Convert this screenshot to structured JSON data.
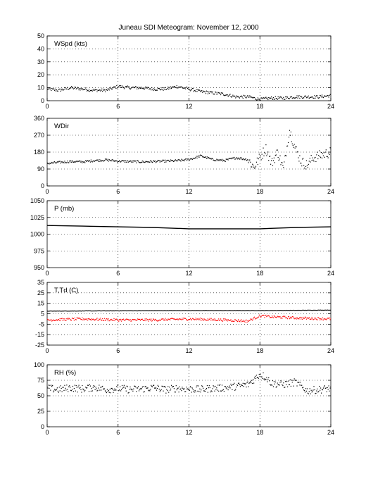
{
  "title": "Juneau SDI Meteogram:  November 12, 2000",
  "chart_data": [
    {
      "type": "scatter",
      "label": "WSpd (kts)",
      "xlim": [
        0,
        24
      ],
      "xticks": [
        0,
        6,
        12,
        18,
        24
      ],
      "ylim": [
        0,
        50
      ],
      "yticks": [
        0,
        10,
        20,
        30,
        40,
        50
      ],
      "grid": "dotted",
      "color": "#000000",
      "x": [
        0,
        1,
        2,
        3,
        4,
        5,
        6,
        7,
        8,
        9,
        10,
        11,
        12,
        13,
        14,
        15,
        16,
        17,
        18,
        19,
        20,
        21,
        22,
        23,
        24
      ],
      "y": [
        9,
        8,
        10,
        9,
        8,
        8,
        11,
        10,
        10,
        9,
        9,
        11,
        9,
        7,
        6,
        5,
        3,
        3,
        1,
        2,
        2,
        3,
        3,
        3,
        4
      ]
    },
    {
      "type": "scatter",
      "label": "WDir",
      "xlim": [
        0,
        24
      ],
      "xticks": [
        0,
        6,
        12,
        18,
        24
      ],
      "ylim": [
        0,
        360
      ],
      "yticks": [
        0,
        90,
        180,
        270,
        360
      ],
      "grid": "dotted",
      "color": "#000000",
      "x": [
        0,
        1,
        2,
        3,
        4,
        5,
        6,
        7,
        8,
        9,
        10,
        11,
        12,
        13,
        14,
        15,
        16,
        17,
        17.5,
        18,
        18.5,
        19,
        19.5,
        20,
        20.5,
        21,
        21.5,
        22,
        22.5,
        23,
        23.5,
        24
      ],
      "y": [
        120,
        125,
        130,
        128,
        135,
        138,
        132,
        130,
        128,
        130,
        132,
        134,
        140,
        160,
        140,
        135,
        150,
        140,
        100,
        150,
        200,
        120,
        180,
        90,
        300,
        200,
        130,
        110,
        150,
        160,
        170,
        180
      ]
    },
    {
      "type": "line",
      "label": "P (mb)",
      "xlim": [
        0,
        24
      ],
      "xticks": [
        0,
        6,
        12,
        18,
        24
      ],
      "ylim": [
        950,
        1050
      ],
      "yticks": [
        950,
        975,
        1000,
        1025,
        1050
      ],
      "grid": "dotted",
      "color": "#000000",
      "x": [
        0,
        3,
        6,
        9,
        12,
        15,
        18,
        21,
        24
      ],
      "y": [
        1013,
        1012,
        1011,
        1010,
        1008,
        1008,
        1008,
        1010,
        1011
      ]
    },
    {
      "type": "scatter",
      "label": "T,Td (C)",
      "xlim": [
        0,
        24
      ],
      "xticks": [
        0,
        6,
        12,
        18,
        24
      ],
      "ylim": [
        -25,
        35
      ],
      "yticks": [
        -25,
        -15,
        -5,
        5,
        15,
        25,
        35
      ],
      "grid": "dotted",
      "series": [
        {
          "color": "#000000",
          "x": [
            0,
            6,
            12,
            18,
            24
          ],
          "y": [
            7.5,
            7.8,
            8,
            8,
            8.5
          ]
        },
        {
          "color": "#ff0000",
          "x": [
            0,
            3,
            6,
            9,
            12,
            15,
            17,
            18,
            19,
            21,
            24
          ],
          "y": [
            -1,
            0,
            -1,
            -1,
            0,
            -1,
            -2,
            3,
            2,
            1,
            0
          ]
        }
      ]
    },
    {
      "type": "scatter",
      "label": "RH (%)",
      "xlim": [
        0,
        24
      ],
      "xticks": [
        0,
        6,
        12,
        18,
        24
      ],
      "ylim": [
        0,
        100
      ],
      "yticks": [
        0,
        25,
        50,
        75,
        100
      ],
      "grid": "dotted",
      "color": "#000000",
      "x": [
        0,
        1,
        2,
        3,
        4,
        5,
        6,
        7,
        8,
        9,
        10,
        11,
        12,
        13,
        14,
        15,
        16,
        17,
        18,
        18.5,
        19,
        20,
        21,
        22,
        23,
        24
      ],
      "y": [
        62,
        60,
        63,
        61,
        64,
        60,
        62,
        60,
        61,
        63,
        60,
        62,
        61,
        60,
        62,
        63,
        65,
        68,
        85,
        80,
        70,
        68,
        72,
        58,
        60,
        62
      ]
    }
  ]
}
